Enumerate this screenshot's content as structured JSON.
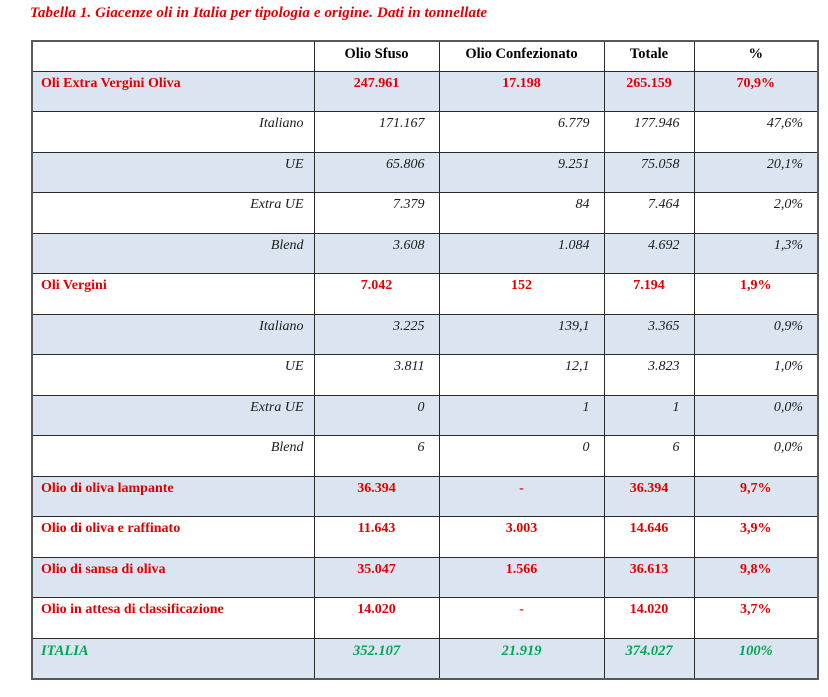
{
  "caption": "Tabella 1. Giacenze oli in Italia per tipologia e origine. Dati in tonnellate",
  "colors": {
    "category_text_red": "#e00000",
    "total_text_green": "#00a651",
    "row_shade_blue": "#dbe5f1"
  },
  "table": {
    "columns": [
      "",
      "Olio Sfuso",
      "Olio Confezionato",
      "Totale",
      "%"
    ],
    "rows": [
      {
        "label": "Oli Extra Vergini Oliva",
        "kind": "category",
        "shaded": true,
        "values": [
          "247.961",
          "17.198",
          "265.159",
          "70,9%"
        ]
      },
      {
        "label": "Italiano",
        "kind": "origin-sub",
        "shaded": false,
        "values": [
          "171.167",
          "6.779",
          "177.946",
          "47,6%"
        ]
      },
      {
        "label": "UE",
        "kind": "origin-sub",
        "shaded": true,
        "values": [
          "65.806",
          "9.251",
          "75.058",
          "20,1%"
        ]
      },
      {
        "label": "Extra UE",
        "kind": "origin-sub",
        "shaded": false,
        "values": [
          "7.379",
          "84",
          "7.464",
          "2,0%"
        ]
      },
      {
        "label": "Blend",
        "kind": "origin-sub",
        "shaded": true,
        "values": [
          "3.608",
          "1.084",
          "4.692",
          "1,3%"
        ]
      },
      {
        "label": "Oli Vergini",
        "kind": "category",
        "shaded": false,
        "values": [
          "7.042",
          "152",
          "7.194",
          "1,9%"
        ]
      },
      {
        "label": "Italiano",
        "kind": "origin-sub",
        "shaded": true,
        "values": [
          "3.225",
          "139,1",
          "3.365",
          "0,9%"
        ]
      },
      {
        "label": "UE",
        "kind": "origin-sub",
        "shaded": false,
        "values": [
          "3.811",
          "12,1",
          "3.823",
          "1,0%"
        ]
      },
      {
        "label": "Extra UE",
        "kind": "origin-sub",
        "shaded": true,
        "values": [
          "0",
          "1",
          "1",
          "0,0%"
        ]
      },
      {
        "label": "Blend",
        "kind": "origin-sub",
        "shaded": false,
        "values": [
          "6",
          "0",
          "6",
          "0,0%"
        ]
      },
      {
        "label": "Olio di oliva lampante",
        "kind": "category",
        "shaded": true,
        "values": [
          "36.394",
          "-",
          "36.394",
          "9,7%"
        ]
      },
      {
        "label": "Olio di oliva e raffinato",
        "kind": "category",
        "shaded": false,
        "values": [
          "11.643",
          "3.003",
          "14.646",
          "3,9%"
        ]
      },
      {
        "label": "Olio di sansa di oliva",
        "kind": "category",
        "shaded": true,
        "values": [
          "35.047",
          "1.566",
          "36.613",
          "9,8%"
        ]
      },
      {
        "label": "Olio in attesa di classificazione",
        "kind": "category",
        "shaded": false,
        "values": [
          "14.020",
          "-",
          "14.020",
          "3,7%"
        ]
      },
      {
        "label": "ITALIA",
        "kind": "total",
        "shaded": true,
        "values": [
          "352.107",
          "21.919",
          "374.027",
          "100%"
        ]
      }
    ]
  }
}
